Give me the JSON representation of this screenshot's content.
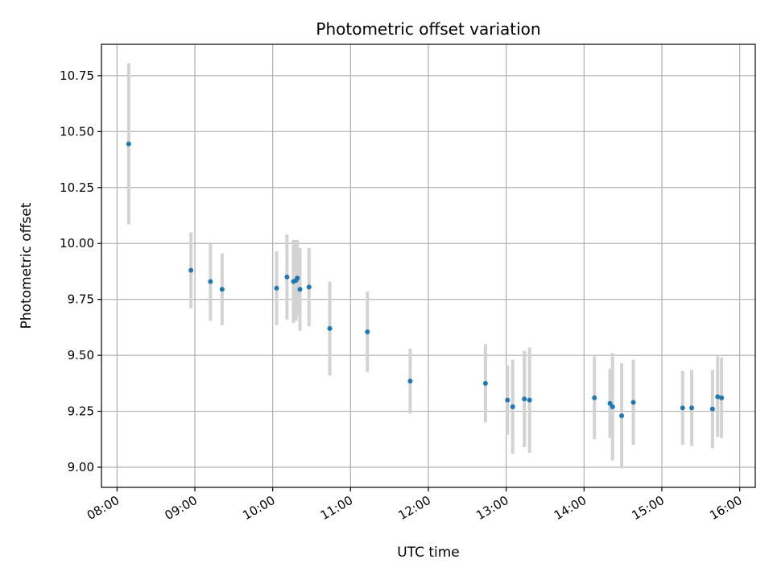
{
  "chart_data": {
    "type": "scatter",
    "title": "Photometric offset variation",
    "xlabel": "UTC time",
    "ylabel": "Photometric offset",
    "x_unit": "time of day (HH:MM, UTC)",
    "xlim": [
      "07:48",
      "16:12"
    ],
    "ylim": [
      8.91,
      10.89
    ],
    "x_ticks": [
      "08:00",
      "09:00",
      "10:00",
      "11:00",
      "12:00",
      "13:00",
      "14:00",
      "15:00",
      "16:00"
    ],
    "y_ticks": [
      "9.00",
      "9.25",
      "9.50",
      "9.75",
      "10.00",
      "10.25",
      "10.50",
      "10.75"
    ],
    "grid": true,
    "legend": "none",
    "series": [
      {
        "marker_color": "#1f77b4",
        "errorbar_color": "#d3d3d3",
        "points": [
          {
            "x": "08:09",
            "y": 10.445,
            "err": 0.36
          },
          {
            "x": "08:57",
            "y": 9.88,
            "err": 0.17
          },
          {
            "x": "09:12",
            "y": 9.83,
            "err": 0.175
          },
          {
            "x": "09:21",
            "y": 9.795,
            "err": 0.16
          },
          {
            "x": "10:03",
            "y": 9.8,
            "err": 0.165
          },
          {
            "x": "10:11",
            "y": 9.85,
            "err": 0.19
          },
          {
            "x": "10:16",
            "y": 9.83,
            "err": 0.185
          },
          {
            "x": "10:18",
            "y": 9.835,
            "err": 0.18
          },
          {
            "x": "10:19",
            "y": 9.845,
            "err": 0.17
          },
          {
            "x": "10:21",
            "y": 9.795,
            "err": 0.185
          },
          {
            "x": "10:28",
            "y": 9.805,
            "err": 0.175
          },
          {
            "x": "10:44",
            "y": 9.62,
            "err": 0.21
          },
          {
            "x": "11:13",
            "y": 9.605,
            "err": 0.18
          },
          {
            "x": "11:46",
            "y": 9.385,
            "err": 0.145
          },
          {
            "x": "12:44",
            "y": 9.375,
            "err": 0.175
          },
          {
            "x": "13:01",
            "y": 9.3,
            "err": 0.155
          },
          {
            "x": "13:05",
            "y": 9.27,
            "err": 0.21
          },
          {
            "x": "13:14",
            "y": 9.305,
            "err": 0.215
          },
          {
            "x": "13:18",
            "y": 9.3,
            "err": 0.235
          },
          {
            "x": "14:08",
            "y": 9.31,
            "err": 0.185
          },
          {
            "x": "14:20",
            "y": 9.285,
            "err": 0.155
          },
          {
            "x": "14:22",
            "y": 9.27,
            "err": 0.24
          },
          {
            "x": "14:29",
            "y": 9.23,
            "err": 0.235
          },
          {
            "x": "14:38",
            "y": 9.29,
            "err": 0.19
          },
          {
            "x": "15:16",
            "y": 9.265,
            "err": 0.165
          },
          {
            "x": "15:23",
            "y": 9.265,
            "err": 0.17
          },
          {
            "x": "15:39",
            "y": 9.26,
            "err": 0.175
          },
          {
            "x": "15:43",
            "y": 9.315,
            "err": 0.18
          },
          {
            "x": "15:46",
            "y": 9.31,
            "err": 0.18
          }
        ]
      }
    ]
  }
}
